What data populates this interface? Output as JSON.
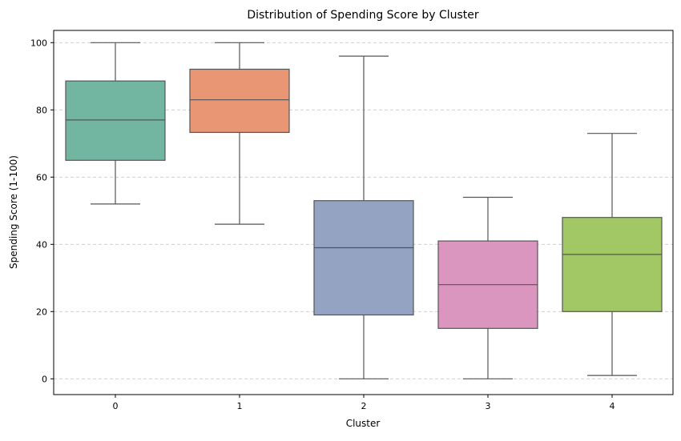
{
  "chart_data": {
    "type": "box",
    "title": "Distribution of Spending Score by Cluster",
    "xlabel": "Cluster",
    "ylabel": "Spending Score (1-100)",
    "categories": [
      "0",
      "1",
      "2",
      "3",
      "4"
    ],
    "ylim": [
      -5,
      105
    ],
    "yticks": [
      0,
      20,
      40,
      60,
      80,
      100
    ],
    "grid": "y dashed",
    "colors": [
      "#72b6a1",
      "#e99675",
      "#95a3c3",
      "#db96c0",
      "#a2c865"
    ],
    "boxes": [
      {
        "whisker_low": 52,
        "q1": 65,
        "median": 77,
        "q3": 88.6,
        "whisker_high": 100
      },
      {
        "whisker_low": 46,
        "q1": 73.3,
        "median": 83,
        "q3": 92.1,
        "whisker_high": 100
      },
      {
        "whisker_low": 0,
        "q1": 19,
        "median": 39,
        "q3": 53,
        "whisker_high": 96
      },
      {
        "whisker_low": 0,
        "q1": 15,
        "median": 28,
        "q3": 41,
        "whisker_high": 54
      },
      {
        "whisker_low": 1,
        "q1": 20,
        "median": 37,
        "q3": 48,
        "whisker_high": 73
      }
    ]
  }
}
